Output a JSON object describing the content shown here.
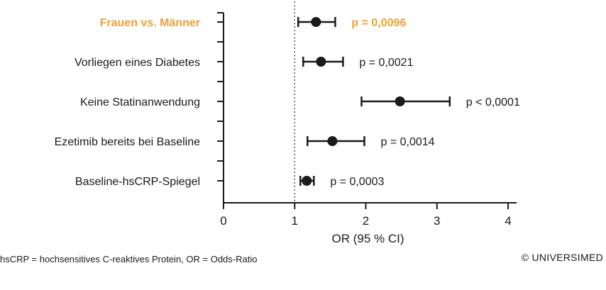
{
  "chart_data": {
    "type": "forest",
    "xlabel": "OR (95 % CI)",
    "xlim": [
      0,
      4
    ],
    "xticks": [
      "0",
      "1",
      "2",
      "3",
      "4"
    ],
    "reference_line": 1,
    "highlight_color": "#f0a033",
    "rows": [
      {
        "label": "Frauen vs. Männer",
        "or": 1.3,
        "ci_low": 1.05,
        "ci_high": 1.57,
        "p_label": "p = 0,0096",
        "highlight": true
      },
      {
        "label": "Vorliegen eines Diabetes",
        "or": 1.37,
        "ci_low": 1.12,
        "ci_high": 1.68,
        "p_label": "p = 0,0021",
        "highlight": false
      },
      {
        "label": "Keine Statinanwendung",
        "or": 2.48,
        "ci_low": 1.94,
        "ci_high": 3.18,
        "p_label": "p < 0,0001",
        "highlight": false
      },
      {
        "label": "Ezetimib bereits bei Baseline",
        "or": 1.53,
        "ci_low": 1.18,
        "ci_high": 1.98,
        "p_label": "p = 0,0014",
        "highlight": false
      },
      {
        "label": "Baseline-hsCRP-Spiegel",
        "or": 1.17,
        "ci_low": 1.08,
        "ci_high": 1.27,
        "p_label": "p = 0,0003",
        "highlight": false
      }
    ]
  },
  "footnote": "hsCRP = hochsensitives C-reaktives Protein, OR = Odds-Ratio",
  "copyright": "© UNIVERSIMED"
}
